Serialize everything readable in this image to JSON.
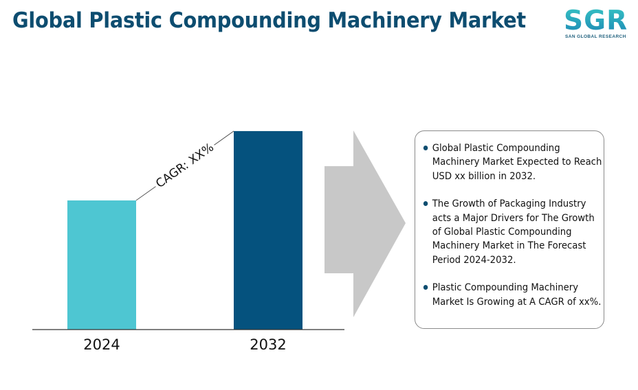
{
  "header": {
    "title": "Global Plastic Compounding Machinery Market"
  },
  "logo": {
    "letters": "SGR",
    "tagline": "SAN GLOBAL RESEARCH"
  },
  "chart_data": {
    "type": "bar",
    "categories": [
      "2024",
      "2032"
    ],
    "values": [
      190,
      292
    ],
    "ylim": [
      0,
      300
    ],
    "grid": false,
    "annotation": "CAGR: XX%",
    "colors": [
      "#4ec6d2",
      "#05527e"
    ]
  },
  "info": {
    "items": [
      "Global Plastic Compounding Machinery Market Expected to Reach USD   xx billion in 2032.",
      "The Growth of Packaging Industry acts a Major Drivers for The Growth of Global Plastic Compounding Machinery Market in The Forecast Period 2024-2032.",
      "Plastic Compounding Machinery Market Is Growing at A CAGR of xx%."
    ]
  },
  "colors": {
    "title": "#0d4d70",
    "arrow": "#c8c8c8",
    "axis": "#333333"
  }
}
